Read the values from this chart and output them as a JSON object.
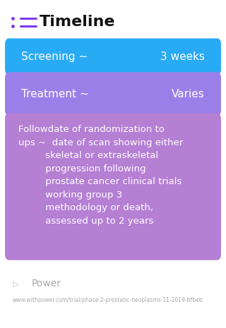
{
  "title": "Timeline",
  "bg_color": "#ffffff",
  "title_color": "#111111",
  "title_fontsize": 16,
  "icon_color": "#7c3aed",
  "rows": [
    {
      "label_left": "Screening ~",
      "label_right": "3 weeks",
      "bg_color": "#29aaf4",
      "text_color": "#ffffff",
      "fontsize": 11
    },
    {
      "label_left": "Treatment ~",
      "label_right": "Varies",
      "bg_color": "#9b7fe8",
      "text_color": "#ffffff",
      "fontsize": 11
    },
    {
      "label_left": "Followdate of randomization to\nups ~  date of scan showing either\n         skeletal or extraskeletal\n         progression following\n         prostate cancer clinical trials\n         working group 3\n         methodology or death,\n         assessed up to 2 years",
      "label_right": "",
      "bg_color": "#b57fd4",
      "text_color": "#ffffff",
      "fontsize": 9.5
    }
  ],
  "footer_logo_text": "Power",
  "footer_url": "www.withpower.com/trial/phase-2-prostatic-neoplasms-11-2019-bfbeb",
  "footer_color": "#aaaaaa",
  "footer_fontsize": 5.5
}
